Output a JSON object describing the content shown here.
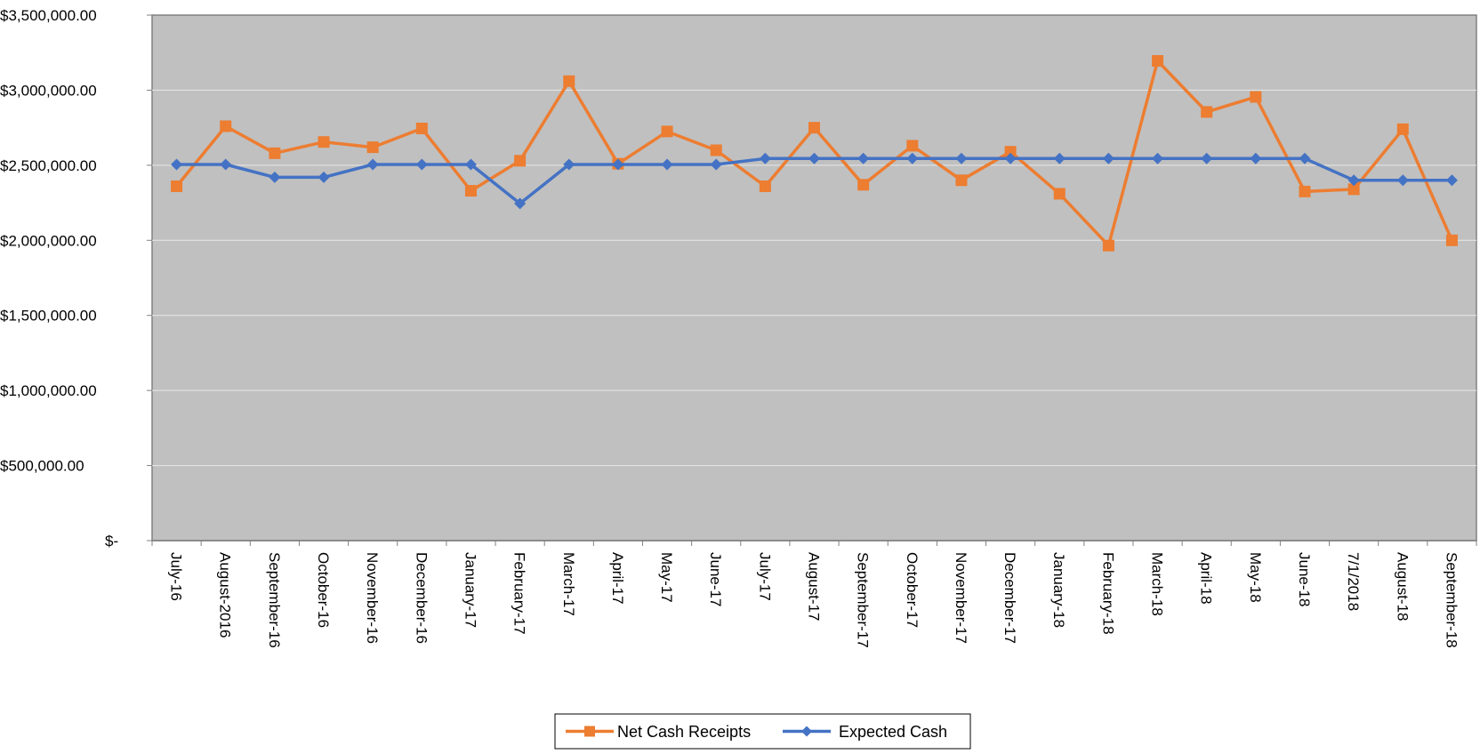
{
  "chart_data": {
    "type": "line",
    "title": "",
    "xlabel": "",
    "ylabel": "",
    "categories": [
      "July-16",
      "August-2016",
      "September-16",
      "October-16",
      "November-16",
      "December-16",
      "January-17",
      "February-17",
      "March-17",
      "April-17",
      "May-17",
      "June-17",
      "July-17",
      "August-17",
      "September-17",
      "October-17",
      "November-17",
      "December-17",
      "January-18",
      "February-18",
      "March-18",
      "April-18",
      "May-18",
      "June-18",
      "7/1/2018",
      "August-18",
      "September-18"
    ],
    "ylim": [
      0,
      3500000
    ],
    "ytick_values": [
      0,
      500000,
      1000000,
      1500000,
      2000000,
      2500000,
      3000000,
      3500000
    ],
    "ytick_labels": [
      "$-",
      "$500,000.00",
      "$1,000,000.00",
      "$1,500,000.00",
      "$2,000,000.00",
      "$2,500,000.00",
      "$3,000,000.00",
      "$3,500,000.00"
    ],
    "grid": true,
    "legend_position": "bottom",
    "plot_background": "#c0c0c0",
    "series": [
      {
        "name": "Net Cash Receipts",
        "color": "#ed7d31",
        "marker": "square",
        "values": [
          2360000,
          2760000,
          2580000,
          2655000,
          2620000,
          2745000,
          2330000,
          2530000,
          3060000,
          2510000,
          2725000,
          2600000,
          2360000,
          2750000,
          2370000,
          2630000,
          2400000,
          2590000,
          2310000,
          1965000,
          3195000,
          2855000,
          2955000,
          2325000,
          2340000,
          2740000,
          2000000
        ]
      },
      {
        "name": "Expected Cash",
        "color": "#4472c4",
        "marker": "diamond",
        "values": [
          2505000,
          2505000,
          2420000,
          2420000,
          2505000,
          2505000,
          2505000,
          2245000,
          2505000,
          2505000,
          2505000,
          2505000,
          2545000,
          2545000,
          2545000,
          2545000,
          2545000,
          2545000,
          2545000,
          2545000,
          2545000,
          2545000,
          2545000,
          2545000,
          2400000,
          2400000,
          2400000
        ]
      }
    ]
  }
}
